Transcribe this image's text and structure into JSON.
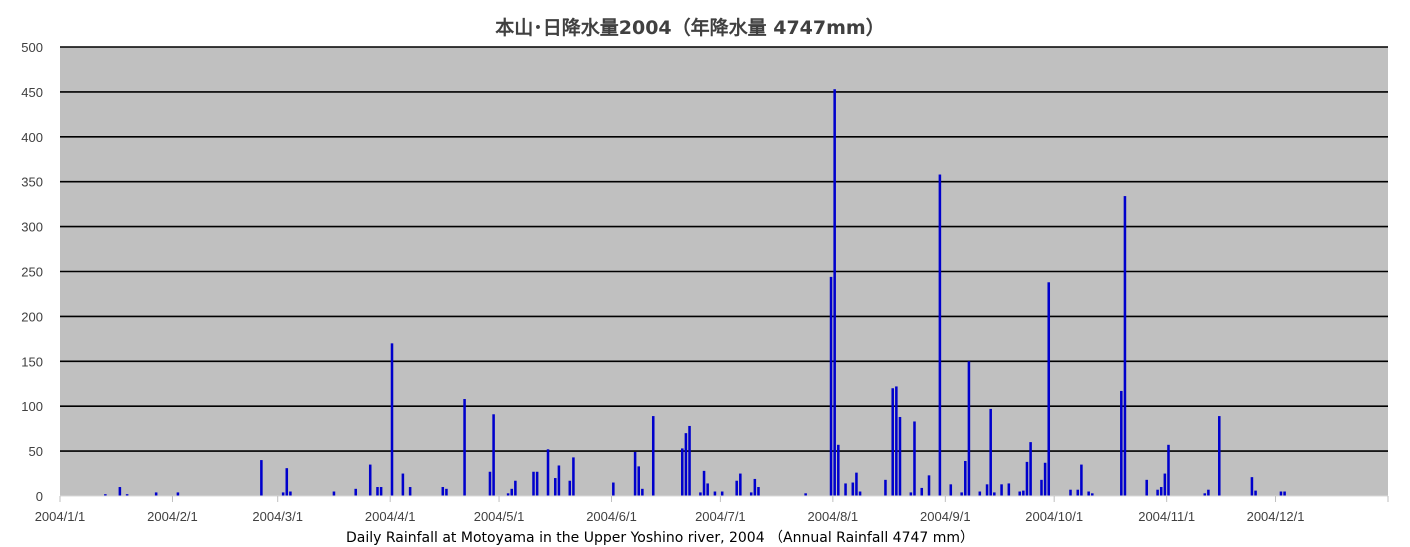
{
  "chart_data": {
    "type": "bar",
    "title": "本山･日降水量2004（年降水量 4747mm）",
    "xlabel": "Daily Rainfall at Motoyama in the Upper Yoshino river, 2004 （Annual Rainfall 4747 mm）",
    "ylabel": "",
    "ylim": [
      0,
      500
    ],
    "yticks": [
      0,
      50,
      100,
      150,
      200,
      250,
      300,
      350,
      400,
      450,
      500
    ],
    "xlim": [
      "2004/1/1",
      "2005/1/1"
    ],
    "xticks": [
      "2004/1/1",
      "2004/2/1",
      "2004/3/1",
      "2004/4/1",
      "2004/5/1",
      "2004/6/1",
      "2004/7/1",
      "2004/8/1",
      "2004/9/1",
      "2004/10/1",
      "2004/11/1",
      "2004/12/1"
    ],
    "grid": "horizontal",
    "legend": "none",
    "series": [
      {
        "color": "#0000cc",
        "points": [
          [
            "2004/1/13",
            2
          ],
          [
            "2004/1/17",
            10
          ],
          [
            "2004/1/19",
            2
          ],
          [
            "2004/1/27",
            4
          ],
          [
            "2004/2/2",
            4
          ],
          [
            "2004/2/25",
            40
          ],
          [
            "2004/3/2",
            4
          ],
          [
            "2004/3/3",
            31
          ],
          [
            "2004/3/4",
            5
          ],
          [
            "2004/3/16",
            5
          ],
          [
            "2004/3/22",
            8
          ],
          [
            "2004/3/26",
            35
          ],
          [
            "2004/3/28",
            10
          ],
          [
            "2004/3/29",
            10
          ],
          [
            "2004/4/1",
            170
          ],
          [
            "2004/4/4",
            25
          ],
          [
            "2004/4/6",
            10
          ],
          [
            "2004/4/15",
            10
          ],
          [
            "2004/4/16",
            8
          ],
          [
            "2004/4/21",
            108
          ],
          [
            "2004/4/28",
            27
          ],
          [
            "2004/4/29",
            91
          ],
          [
            "2004/5/3",
            3
          ],
          [
            "2004/5/4",
            8
          ],
          [
            "2004/5/5",
            17
          ],
          [
            "2004/5/10",
            27
          ],
          [
            "2004/5/11",
            27
          ],
          [
            "2004/5/14",
            52
          ],
          [
            "2004/5/16",
            20
          ],
          [
            "2004/5/17",
            34
          ],
          [
            "2004/5/20",
            17
          ],
          [
            "2004/5/21",
            43
          ],
          [
            "2004/6/1",
            15
          ],
          [
            "2004/6/7",
            49
          ],
          [
            "2004/6/8",
            33
          ],
          [
            "2004/6/9",
            8
          ],
          [
            "2004/6/12",
            89
          ],
          [
            "2004/6/20",
            53
          ],
          [
            "2004/6/21",
            70
          ],
          [
            "2004/6/22",
            78
          ],
          [
            "2004/6/25",
            4
          ],
          [
            "2004/6/26",
            28
          ],
          [
            "2004/6/27",
            14
          ],
          [
            "2004/6/29",
            5
          ],
          [
            "2004/7/1",
            5
          ],
          [
            "2004/7/5",
            17
          ],
          [
            "2004/7/6",
            25
          ],
          [
            "2004/7/9",
            4
          ],
          [
            "2004/7/10",
            19
          ],
          [
            "2004/7/11",
            10
          ],
          [
            "2004/7/24",
            3
          ],
          [
            "2004/7/31",
            244
          ],
          [
            "2004/8/1",
            453
          ],
          [
            "2004/8/2",
            57
          ],
          [
            "2004/8/4",
            14
          ],
          [
            "2004/8/6",
            15
          ],
          [
            "2004/8/7",
            26
          ],
          [
            "2004/8/8",
            5
          ],
          [
            "2004/8/15",
            18
          ],
          [
            "2004/8/17",
            120
          ],
          [
            "2004/8/18",
            122
          ],
          [
            "2004/8/19",
            88
          ],
          [
            "2004/8/22",
            4
          ],
          [
            "2004/8/23",
            83
          ],
          [
            "2004/8/25",
            9
          ],
          [
            "2004/8/27",
            23
          ],
          [
            "2004/8/30",
            358
          ],
          [
            "2004/9/2",
            13
          ],
          [
            "2004/9/5",
            4
          ],
          [
            "2004/9/6",
            39
          ],
          [
            "2004/9/7",
            150
          ],
          [
            "2004/9/10",
            5
          ],
          [
            "2004/9/12",
            13
          ],
          [
            "2004/9/13",
            97
          ],
          [
            "2004/9/14",
            4
          ],
          [
            "2004/9/16",
            13
          ],
          [
            "2004/9/18",
            14
          ],
          [
            "2004/9/21",
            5
          ],
          [
            "2004/9/22",
            6
          ],
          [
            "2004/9/23",
            38
          ],
          [
            "2004/9/24",
            60
          ],
          [
            "2004/9/27",
            18
          ],
          [
            "2004/9/28",
            37
          ],
          [
            "2004/9/29",
            238
          ],
          [
            "2004/10/5",
            7
          ],
          [
            "2004/10/7",
            7
          ],
          [
            "2004/10/8",
            35
          ],
          [
            "2004/10/10",
            5
          ],
          [
            "2004/10/11",
            3
          ],
          [
            "2004/10/19",
            117
          ],
          [
            "2004/10/20",
            334
          ],
          [
            "2004/10/26",
            18
          ],
          [
            "2004/10/29",
            7
          ],
          [
            "2004/10/30",
            10
          ],
          [
            "2004/10/31",
            25
          ],
          [
            "2004/11/1",
            57
          ],
          [
            "2004/11/11",
            3
          ],
          [
            "2004/11/12",
            7
          ],
          [
            "2004/11/15",
            89
          ],
          [
            "2004/11/24",
            21
          ],
          [
            "2004/11/25",
            6
          ],
          [
            "2004/12/2",
            5
          ],
          [
            "2004/12/3",
            5
          ]
        ]
      }
    ]
  }
}
